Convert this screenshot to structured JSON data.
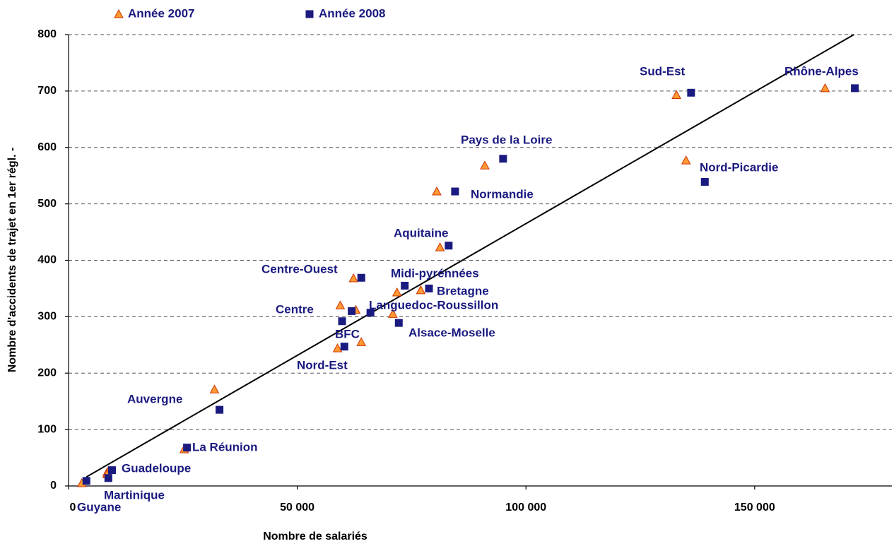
{
  "chart_data": {
    "type": "scatter",
    "x_label": "Nombre de salariés",
    "y_label": "Nombre d'accidents de trajet en 1er régl. -",
    "xlim": [
      0,
      180000
    ],
    "ylim": [
      0,
      800
    ],
    "xticks": [
      0,
      {
        "value": 50000,
        "label": "50 000"
      },
      {
        "value": 100000,
        "label": "100 000"
      },
      {
        "value": 150000,
        "label": "150 000"
      }
    ],
    "yticks": [
      0,
      100,
      200,
      300,
      400,
      500,
      600,
      700,
      800
    ],
    "grid": true,
    "point_labels": [
      "Sud-Est",
      "Rhône-Alpes",
      "Nord-Picardie",
      "Pays de la Loire",
      "Normandie",
      "Aquitaine",
      "Centre-Ouest",
      "Midi-pyrénnées",
      "Bretagne",
      "Centre",
      "Languedoc-Roussillon",
      "Alsace-Moselle",
      "BFC",
      "Nord-Est",
      "Auvergne",
      "La Réunion",
      "Guadeloupe",
      "Martinique",
      "Guyane"
    ],
    "series": [
      {
        "name": "Année 2007",
        "marker": "triangle",
        "color": "#ff9933",
        "edge_color": "#cc3300",
        "x": [
          132900,
          165400,
          135000,
          91000,
          80500,
          81200,
          62300,
          71800,
          77000,
          59400,
          62800,
          70900,
          64000,
          58800,
          31900,
          25300,
          8500,
          8400,
          2900
        ],
        "values": [
          693,
          705,
          577,
          568,
          522,
          423,
          368,
          343,
          347,
          320,
          312,
          305,
          255,
          244,
          171,
          65,
          25,
          21,
          5
        ]
      },
      {
        "name": "Année 2008",
        "marker": "square",
        "color": "#1a1a80",
        "edge_color": "#1a1a80",
        "x": [
          136100,
          171900,
          139100,
          95000,
          84500,
          83100,
          64000,
          73500,
          78800,
          61900,
          66000,
          72200,
          59800,
          60300,
          33000,
          25900,
          9500,
          8700,
          3900
        ],
        "values": [
          697,
          705,
          539,
          580,
          522,
          426,
          369,
          355,
          350,
          310,
          307,
          289,
          292,
          247,
          135,
          68,
          28,
          14,
          9
        ]
      }
    ],
    "trendline": {
      "color": "#000000",
      "x": [
        3900,
        171700
      ],
      "values": [
        16,
        800
      ]
    }
  }
}
